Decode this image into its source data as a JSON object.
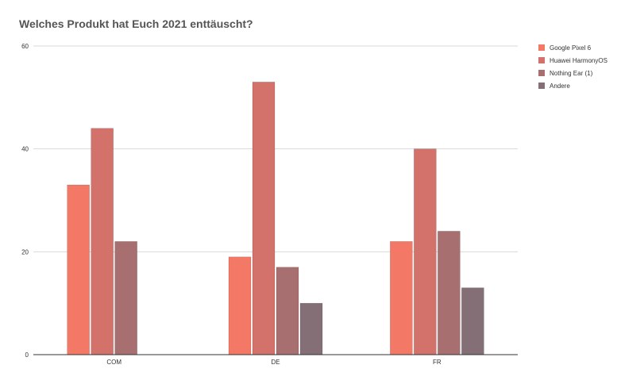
{
  "chart_data": {
    "type": "bar",
    "title": "Welches Produkt hat Euch 2021 enttäuscht?",
    "xlabel": "",
    "ylabel": "",
    "categories": [
      "COM",
      "DE",
      "FR"
    ],
    "series": [
      {
        "name": "Google Pixel 6",
        "color": "#f47866",
        "values": [
          33,
          19,
          22
        ]
      },
      {
        "name": "Huawei HarmonyOS",
        "color": "#d2726a",
        "values": [
          44,
          53,
          40
        ]
      },
      {
        "name": "Nothing Ear (1)",
        "color": "#a86f70",
        "values": [
          22,
          17,
          24
        ]
      },
      {
        "name": "Andere",
        "color": "#846f76",
        "values": [
          null,
          10,
          13
        ]
      }
    ],
    "ylim": [
      0,
      60
    ],
    "yticks": [
      0,
      20,
      40,
      60
    ],
    "grid": true,
    "legend_position": "right"
  }
}
